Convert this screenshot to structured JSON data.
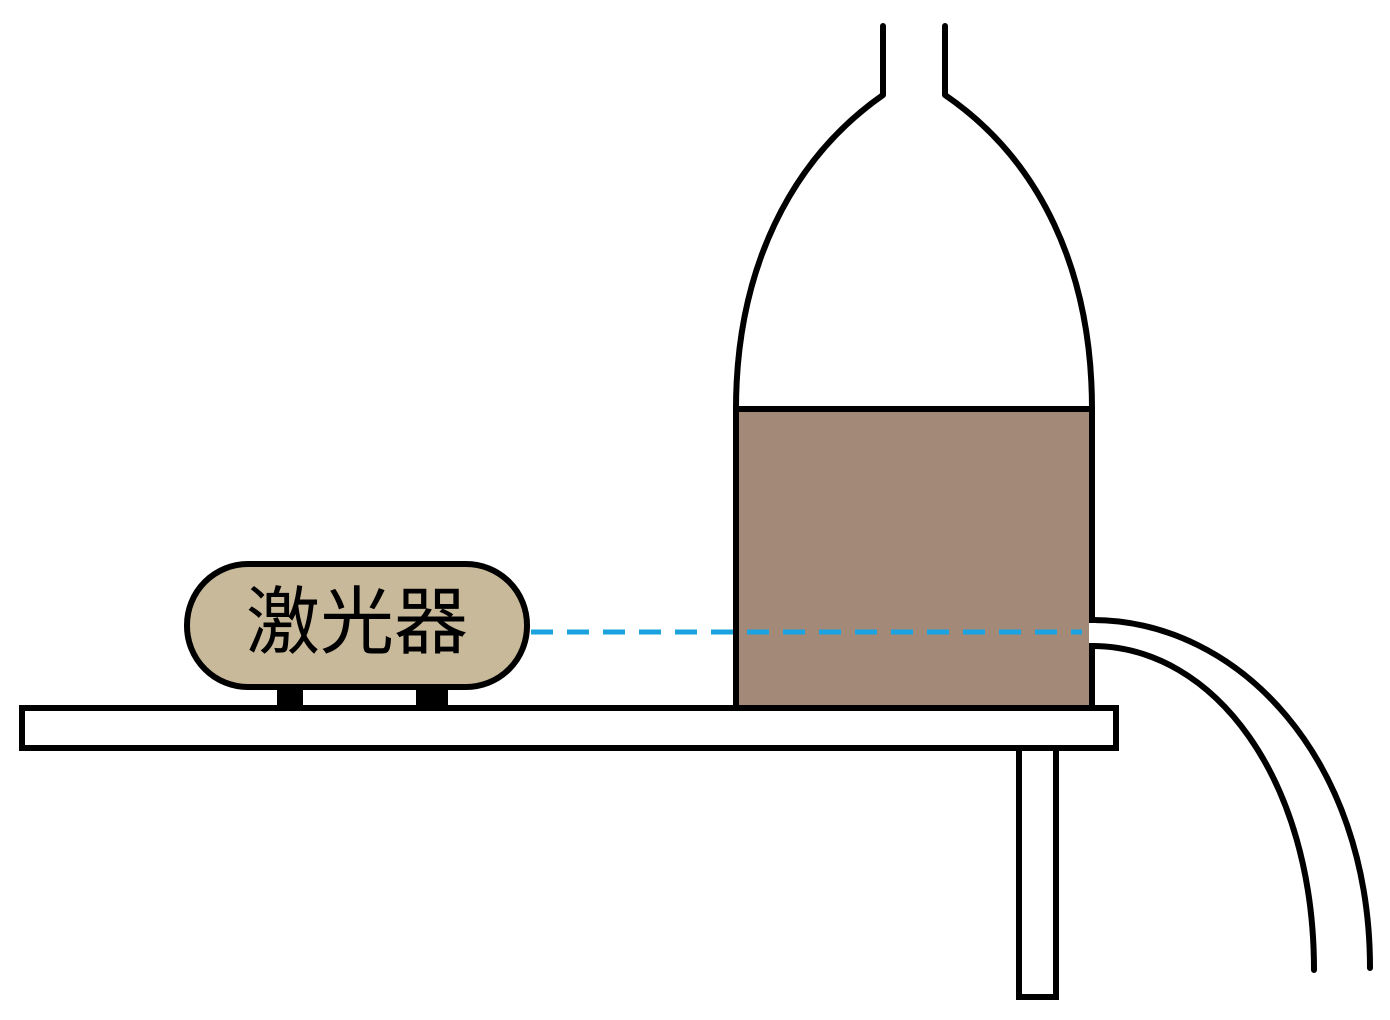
{
  "laser": {
    "label": "激光器"
  },
  "colors": {
    "background": "#ffffff",
    "outline": "#000000",
    "water": "#a38a78",
    "laser_body": "#c8b99a",
    "beam": "#1aa3e0",
    "table": "#ffffff"
  }
}
